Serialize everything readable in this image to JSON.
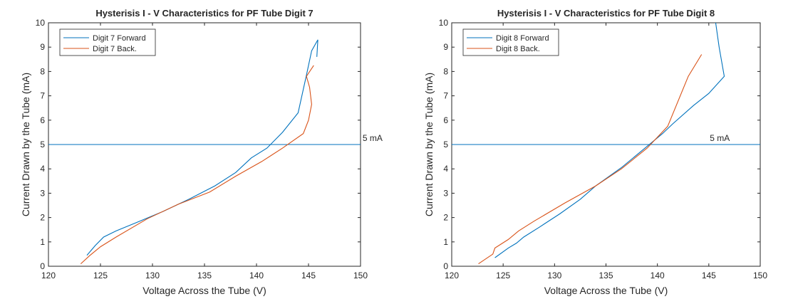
{
  "chart_data": [
    {
      "type": "line",
      "title": "Hysterisis I - V Characteristics for PF Tube Digit 7",
      "xlabel": "Voltage Across the Tube (V)",
      "ylabel": "Current Drawn by the Tube (mA)",
      "xlim": [
        120,
        150
      ],
      "ylim": [
        0,
        10
      ],
      "xticks": [
        120,
        125,
        130,
        135,
        140,
        145,
        150
      ],
      "yticks": [
        0,
        1,
        2,
        3,
        4,
        5,
        6,
        7,
        8,
        9,
        10
      ],
      "grid": false,
      "legend_position": "top-left",
      "reference_line": {
        "y": 5,
        "label": "5 mA",
        "label_x": 150.2
      },
      "series": [
        {
          "name": "Digit 7 Forward",
          "color": "#0072BD",
          "x": [
            123.7,
            124.5,
            125.3,
            126.5,
            128.5,
            131.0,
            133.5,
            136.0,
            138.0,
            139.5,
            141.0,
            142.5,
            144.0,
            144.8,
            145.3,
            145.9,
            145.8
          ],
          "y": [
            0.45,
            0.85,
            1.2,
            1.45,
            1.8,
            2.25,
            2.75,
            3.3,
            3.85,
            4.45,
            4.85,
            5.5,
            6.3,
            7.85,
            8.85,
            9.3,
            8.6
          ]
        },
        {
          "name": "Digit 7 Back.",
          "color": "#D95319",
          "x": [
            123.1,
            124.0,
            125.0,
            126.5,
            129.5,
            132.5,
            135.5,
            138.0,
            140.5,
            142.5,
            144.5,
            145.0,
            145.3,
            145.1,
            144.8,
            145.5
          ],
          "y": [
            0.1,
            0.45,
            0.8,
            1.2,
            1.95,
            2.55,
            3.05,
            3.7,
            4.3,
            4.85,
            5.45,
            6.0,
            6.65,
            7.35,
            7.8,
            8.25
          ]
        }
      ]
    },
    {
      "type": "line",
      "title": "Hysterisis I - V Characteristics for PF Tube Digit 8",
      "xlabel": "Voltage Across the Tube (V)",
      "ylabel": "Current Drawn by the Tube (mA)",
      "xlim": [
        120,
        150
      ],
      "ylim": [
        0,
        10
      ],
      "xticks": [
        120,
        125,
        130,
        135,
        140,
        145,
        150
      ],
      "yticks": [
        0,
        1,
        2,
        3,
        4,
        5,
        6,
        7,
        8,
        9,
        10
      ],
      "grid": false,
      "legend_position": "top-left",
      "reference_line": {
        "y": 5,
        "label": "5 mA",
        "label_x": 145.1
      },
      "series": [
        {
          "name": "Digit 8 Forward",
          "color": "#0072BD",
          "x": [
            124.2,
            125.5,
            126.3,
            127.0,
            128.5,
            130.5,
            132.5,
            134.0,
            136.5,
            138.5,
            140.5,
            141.5,
            143.5,
            145.0,
            146.5,
            146.0,
            145.6
          ],
          "y": [
            0.35,
            0.75,
            0.95,
            1.2,
            1.6,
            2.15,
            2.75,
            3.3,
            4.05,
            4.75,
            5.45,
            5.85,
            6.6,
            7.1,
            7.8,
            9.0,
            10.2
          ]
        },
        {
          "name": "Digit 8 Back.",
          "color": "#D95319",
          "x": [
            122.6,
            124.0,
            124.2,
            125.5,
            126.5,
            128.0,
            131.0,
            134.0,
            136.5,
            139.0,
            141.0,
            143.0,
            144.3
          ],
          "y": [
            0.1,
            0.5,
            0.75,
            1.1,
            1.45,
            1.85,
            2.6,
            3.3,
            4.0,
            4.85,
            5.75,
            7.8,
            8.7
          ]
        }
      ]
    }
  ]
}
